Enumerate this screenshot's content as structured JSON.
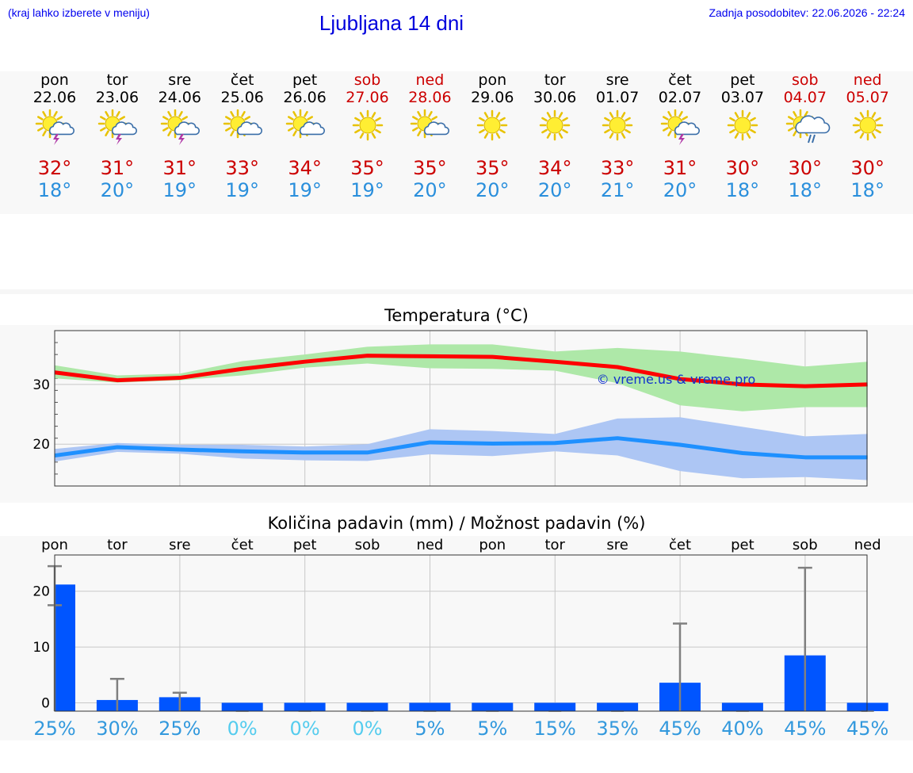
{
  "header": {
    "note": "(kraj lahko izberete v meniju)",
    "title": "Ljubljana 14 dni",
    "updated": "Zadnja posodobitev: 22.06.2026 - 22:24"
  },
  "days": [
    {
      "name": "pon",
      "date": "22.06",
      "weekend": false,
      "icon": "sun-cloud-thunder-icon",
      "tmax": "32°",
      "tmin": "18°"
    },
    {
      "name": "tor",
      "date": "23.06",
      "weekend": false,
      "icon": "sun-cloud-thunder-icon",
      "tmax": "31°",
      "tmin": "20°"
    },
    {
      "name": "sre",
      "date": "24.06",
      "weekend": false,
      "icon": "sun-cloud-thunder-icon",
      "tmax": "31°",
      "tmin": "19°"
    },
    {
      "name": "čet",
      "date": "25.06",
      "weekend": false,
      "icon": "sun-cloud-icon",
      "tmax": "33°",
      "tmin": "19°"
    },
    {
      "name": "pet",
      "date": "26.06",
      "weekend": false,
      "icon": "sun-cloud-icon",
      "tmax": "34°",
      "tmin": "19°"
    },
    {
      "name": "sob",
      "date": "27.06",
      "weekend": true,
      "icon": "sun-icon",
      "tmax": "35°",
      "tmin": "19°"
    },
    {
      "name": "ned",
      "date": "28.06",
      "weekend": true,
      "icon": "sun-cloud-icon",
      "tmax": "35°",
      "tmin": "20°"
    },
    {
      "name": "pon",
      "date": "29.06",
      "weekend": false,
      "icon": "sun-icon",
      "tmax": "35°",
      "tmin": "20°"
    },
    {
      "name": "tor",
      "date": "30.06",
      "weekend": false,
      "icon": "sun-icon",
      "tmax": "34°",
      "tmin": "20°"
    },
    {
      "name": "sre",
      "date": "01.07",
      "weekend": false,
      "icon": "sun-icon",
      "tmax": "33°",
      "tmin": "21°"
    },
    {
      "name": "čet",
      "date": "02.07",
      "weekend": false,
      "icon": "sun-cloud-thunder-icon",
      "tmax": "31°",
      "tmin": "20°"
    },
    {
      "name": "pet",
      "date": "03.07",
      "weekend": false,
      "icon": "sun-icon",
      "tmax": "30°",
      "tmin": "18°"
    },
    {
      "name": "sob",
      "date": "04.07",
      "weekend": true,
      "icon": "sun-cloud-rain-icon",
      "tmax": "30°",
      "tmin": "18°"
    },
    {
      "name": "ned",
      "date": "05.07",
      "weekend": true,
      "icon": "sun-icon",
      "tmax": "30°",
      "tmin": "18°"
    }
  ],
  "colors": {
    "max_line": "#ff0000",
    "max_band": "#aee8a8",
    "min_line": "#1e90ff",
    "min_band": "#adc6f4",
    "precip_bar": "#0055ff",
    "error_bar": "#808080",
    "pct_high": "#3399dd",
    "pct_low": "#55ccee"
  },
  "chart_data": [
    {
      "type": "line",
      "title": "Temperatura (°C)",
      "watermark": "© vreme.us & vreme.pro",
      "ylim": [
        13,
        39
      ],
      "yticks": [
        20,
        30
      ],
      "x": [
        0,
        1,
        2,
        3,
        4,
        5,
        6,
        7,
        8,
        9,
        10,
        11,
        12,
        13
      ],
      "series": [
        {
          "name": "max",
          "values": [
            32,
            30.7,
            31.1,
            32.6,
            33.8,
            34.8,
            34.7,
            34.6,
            33.8,
            32.9,
            30.9,
            30,
            29.7,
            30
          ],
          "band_low": [
            31,
            30.3,
            30.7,
            31.5,
            32.8,
            33.5,
            32.7,
            32.6,
            32.3,
            30.2,
            26.5,
            25.5,
            26.2,
            26.2
          ],
          "band_high": [
            33.2,
            31.5,
            31.8,
            33.9,
            35,
            36.3,
            36.7,
            36.7,
            35.5,
            36.1,
            35.5,
            34.3,
            33,
            33.8
          ]
        },
        {
          "name": "min",
          "values": [
            18.1,
            19.5,
            19.1,
            18.8,
            18.6,
            18.6,
            20.3,
            20.1,
            20.2,
            21,
            19.9,
            18.5,
            17.8,
            17.8
          ],
          "band_low": [
            17.1,
            18.7,
            18.4,
            17.6,
            17.3,
            17.2,
            18.3,
            18,
            18.8,
            18.1,
            15.5,
            14.3,
            14.5,
            14
          ],
          "band_high": [
            19.2,
            20.2,
            19.9,
            19.9,
            19.6,
            20,
            22.5,
            22.2,
            21.7,
            24.3,
            24.5,
            22.9,
            21.3,
            21.7
          ]
        }
      ]
    },
    {
      "type": "bar",
      "title": "Količina padavin (mm) / Možnost padavin (%)",
      "categories": [
        "pon",
        "tor",
        "sre",
        "čet",
        "pet",
        "sob",
        "ned",
        "pon",
        "tor",
        "sre",
        "čet",
        "pet",
        "sob",
        "ned"
      ],
      "values": [
        21.2,
        0.5,
        1,
        0,
        0,
        0,
        0,
        0,
        0,
        0,
        3.6,
        0,
        8.5,
        0
      ],
      "err_low": [
        17.5,
        0,
        0,
        0,
        0,
        0,
        0,
        0,
        0,
        0,
        0,
        0,
        0,
        0
      ],
      "err_high": [
        24.5,
        4.3,
        1.8,
        0,
        0,
        0,
        0,
        0,
        0,
        0,
        14.2,
        0,
        24.2,
        0
      ],
      "ylim": [
        -1.5,
        26.5
      ],
      "yticks": [
        0,
        10,
        20
      ],
      "percent": [
        "25%",
        "30%",
        "25%",
        "0%",
        "0%",
        "0%",
        "5%",
        "5%",
        "15%",
        "35%",
        "45%",
        "40%",
        "45%",
        "45%"
      ]
    }
  ]
}
